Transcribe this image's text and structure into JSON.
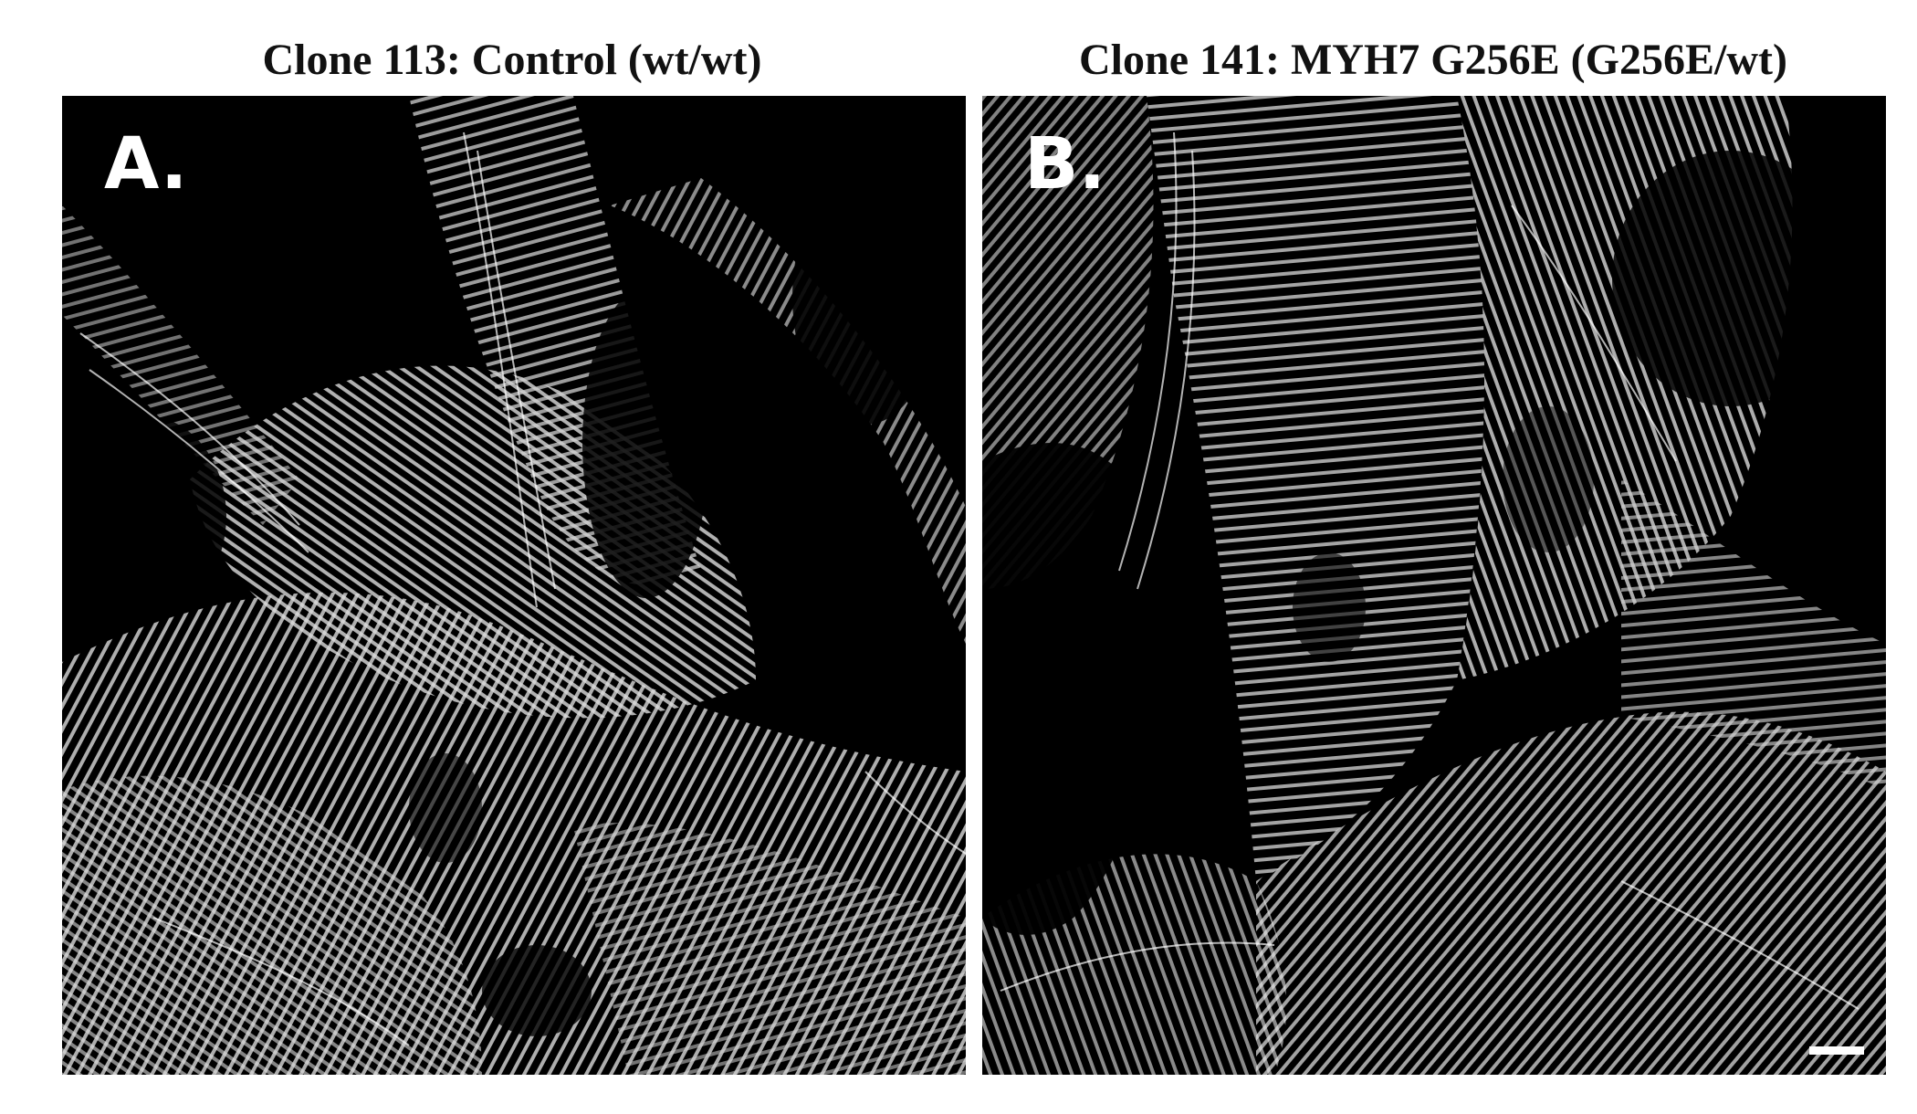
{
  "figure": {
    "panels": [
      {
        "title": "Clone 113: Control (wt/wt)",
        "letter": "A."
      },
      {
        "title": "Clone 141: MYH7 G256E (G256E/wt)",
        "letter": "B."
      }
    ]
  }
}
